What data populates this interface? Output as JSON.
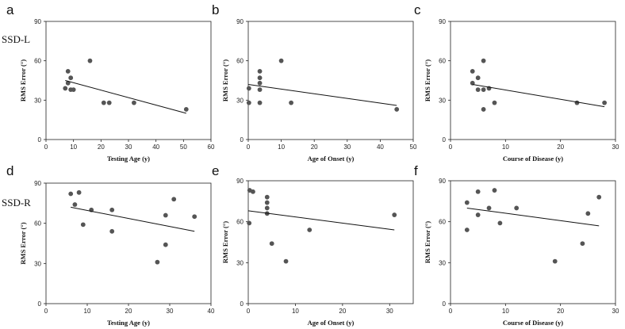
{
  "row_labels": [
    "SSD-L",
    "SSD-R"
  ],
  "chart_data": [
    {
      "type": "scatter",
      "panel": "a",
      "xlabel": "Testing Age (y)",
      "ylabel": "RMS Error (°)",
      "xlim": [
        0,
        60
      ],
      "ylim": [
        0,
        90
      ],
      "xticks": [
        0,
        10,
        20,
        30,
        40,
        50,
        60
      ],
      "yticks": [
        0,
        30,
        60,
        90
      ],
      "x": [
        7,
        8,
        8,
        9,
        9,
        10,
        16,
        21,
        23,
        32,
        51
      ],
      "y": [
        39,
        52,
        43,
        47,
        38,
        38,
        60,
        28,
        28,
        28,
        23
      ],
      "fit": {
        "x": [
          7,
          51
        ],
        "y": [
          45,
          20
        ]
      }
    },
    {
      "type": "scatter",
      "panel": "b",
      "xlabel": "Age of Onset (y)",
      "ylabel": "RMS Error (°)",
      "xlim": [
        0,
        50
      ],
      "ylim": [
        0,
        90
      ],
      "xticks": [
        0,
        10,
        20,
        30,
        40,
        50
      ],
      "yticks": [
        0,
        30,
        60,
        90
      ],
      "x": [
        0.2,
        0.2,
        3.5,
        3.5,
        3.5,
        3.5,
        3.5,
        10,
        13,
        45
      ],
      "y": [
        39,
        28,
        52,
        47,
        43,
        38,
        28,
        60,
        28,
        23
      ],
      "fit": {
        "x": [
          0,
          45
        ],
        "y": [
          42,
          26
        ]
      }
    },
    {
      "type": "scatter",
      "panel": "c",
      "xlabel": "Course of Disease (y)",
      "ylabel": "RMS Error (°)",
      "xlim": [
        0,
        30
      ],
      "ylim": [
        0,
        90
      ],
      "xticks": [
        0,
        10,
        20,
        30
      ],
      "yticks": [
        0,
        30,
        60,
        90
      ],
      "x": [
        4,
        4,
        5,
        5,
        6,
        6,
        6,
        7,
        8,
        23,
        28
      ],
      "y": [
        52,
        43,
        47,
        38,
        60,
        38,
        23,
        39,
        28,
        28,
        28
      ],
      "fit": {
        "x": [
          4,
          28
        ],
        "y": [
          42,
          25
        ]
      }
    },
    {
      "type": "scatter",
      "panel": "d",
      "xlabel": "Testing Age (y)",
      "ylabel": "RMS Error (°)",
      "xlim": [
        0,
        40
      ],
      "ylim": [
        0,
        90
      ],
      "xticks": [
        0,
        10,
        20,
        30,
        40
      ],
      "yticks": [
        0,
        30,
        60,
        90
      ],
      "x": [
        6,
        7,
        8,
        9,
        11,
        16,
        16,
        27,
        29,
        29,
        31,
        36
      ],
      "y": [
        82,
        74,
        83,
        59,
        70,
        70,
        54,
        31,
        44,
        66,
        78,
        65
      ],
      "fit": {
        "x": [
          6,
          36
        ],
        "y": [
          72,
          54
        ]
      }
    },
    {
      "type": "scatter",
      "panel": "e",
      "xlabel": "Age of Onset (y)",
      "ylabel": "RMS Error (°)",
      "xlim": [
        0,
        35
      ],
      "ylim": [
        0,
        90
      ],
      "xticks": [
        0,
        10,
        20,
        30
      ],
      "yticks": [
        0,
        30,
        60,
        90
      ],
      "x": [
        0.2,
        0.3,
        1,
        4,
        4,
        4,
        4,
        5,
        8,
        13,
        31
      ],
      "y": [
        59,
        83,
        82,
        78,
        74,
        70,
        66,
        44,
        31,
        54,
        65
      ],
      "fit": {
        "x": [
          0,
          31
        ],
        "y": [
          68,
          54
        ]
      }
    },
    {
      "type": "scatter",
      "panel": "f",
      "xlabel": "Course of Disease (y)",
      "ylabel": "RMS Error (°)",
      "xlim": [
        0,
        30
      ],
      "ylim": [
        0,
        90
      ],
      "xticks": [
        0,
        10,
        20,
        30
      ],
      "yticks": [
        0,
        30,
        60,
        90
      ],
      "x": [
        3,
        3,
        5,
        5,
        7,
        8,
        9,
        12,
        19,
        24,
        25,
        27
      ],
      "y": [
        74,
        54,
        82,
        65,
        70,
        83,
        59,
        70,
        31,
        44,
        66,
        78
      ],
      "fit": {
        "x": [
          3,
          27
        ],
        "y": [
          70,
          57
        ]
      }
    }
  ]
}
